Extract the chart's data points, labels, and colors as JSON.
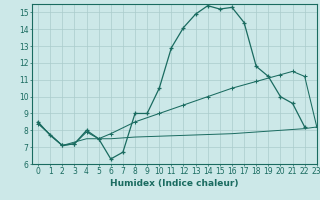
{
  "xlabel": "Humidex (Indice chaleur)",
  "bg_color": "#cce8e8",
  "grid_color": "#aacccc",
  "line_color": "#1a6b60",
  "line1_x": [
    0,
    1,
    2,
    3,
    4,
    5,
    6,
    7,
    8,
    9,
    10,
    11,
    12,
    13,
    14,
    15,
    16,
    17,
    18,
    19,
    20,
    21,
    22
  ],
  "line1_y": [
    8.5,
    7.7,
    7.1,
    7.2,
    8.0,
    7.5,
    6.3,
    6.7,
    9.0,
    9.0,
    10.5,
    12.9,
    14.1,
    14.9,
    15.4,
    15.2,
    15.3,
    14.4,
    11.8,
    11.2,
    10.0,
    9.6,
    8.2
  ],
  "line2_x": [
    0,
    2,
    3,
    4,
    5,
    6,
    8,
    10,
    12,
    14,
    16,
    18,
    20,
    21,
    22,
    23
  ],
  "line2_y": [
    8.4,
    7.1,
    7.2,
    7.9,
    7.5,
    7.8,
    8.5,
    9.0,
    9.5,
    10.0,
    10.5,
    10.9,
    11.3,
    11.5,
    11.2,
    8.2
  ],
  "line3_x": [
    0,
    2,
    4,
    6,
    8,
    10,
    12,
    14,
    16,
    18,
    20,
    22,
    23
  ],
  "line3_y": [
    8.4,
    7.1,
    7.5,
    7.5,
    7.6,
    7.65,
    7.7,
    7.75,
    7.8,
    7.9,
    8.0,
    8.1,
    8.2
  ],
  "ylim": [
    6,
    15.5
  ],
  "xlim": [
    -0.5,
    23
  ],
  "yticks": [
    6,
    7,
    8,
    9,
    10,
    11,
    12,
    13,
    14,
    15
  ],
  "xticks": [
    0,
    1,
    2,
    3,
    4,
    5,
    6,
    7,
    8,
    9,
    10,
    11,
    12,
    13,
    14,
    15,
    16,
    17,
    18,
    19,
    20,
    21,
    22,
    23
  ],
  "label_fontsize": 6.5,
  "tick_fontsize": 5.5
}
